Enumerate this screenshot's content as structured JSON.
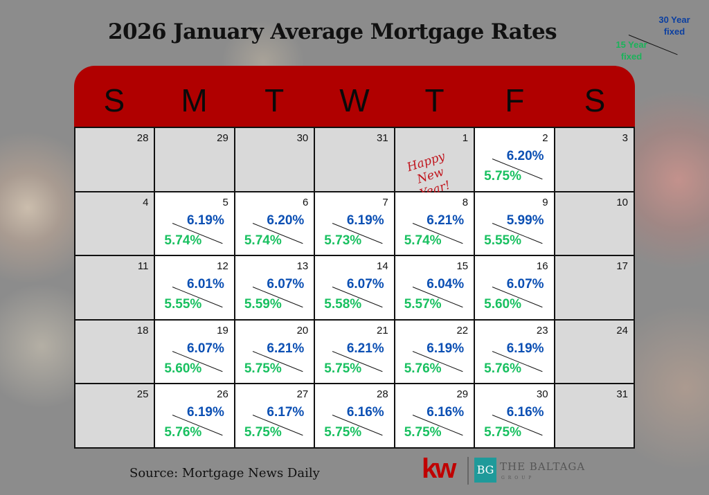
{
  "title": "2026 January Average Mortgage Rates",
  "legend": {
    "thirty": "30 Year fixed",
    "fifteen": "15 Year fixed"
  },
  "weekdays": [
    "S",
    "M",
    "T",
    "W",
    "T",
    "F",
    "S"
  ],
  "weeks": [
    [
      {
        "day": "28",
        "shaded": true
      },
      {
        "day": "29",
        "shaded": true
      },
      {
        "day": "30",
        "shaded": true
      },
      {
        "day": "31",
        "shaded": true
      },
      {
        "day": "1",
        "shaded": true,
        "note": "Happy New Year!"
      },
      {
        "day": "2",
        "r30": "6.20%",
        "r15": "5.75%"
      },
      {
        "day": "3",
        "shaded": true
      }
    ],
    [
      {
        "day": "4",
        "shaded": true
      },
      {
        "day": "5",
        "r30": "6.19%",
        "r15": "5.74%"
      },
      {
        "day": "6",
        "r30": "6.20%",
        "r15": "5.74%"
      },
      {
        "day": "7",
        "r30": "6.19%",
        "r15": "5.73%"
      },
      {
        "day": "8",
        "r30": "6.21%",
        "r15": "5.74%"
      },
      {
        "day": "9",
        "r30": "5.99%",
        "r15": "5.55%"
      },
      {
        "day": "10",
        "shaded": true
      }
    ],
    [
      {
        "day": "11",
        "shaded": true
      },
      {
        "day": "12",
        "r30": "6.01%",
        "r15": "5.55%"
      },
      {
        "day": "13",
        "r30": "6.07%",
        "r15": "5.59%"
      },
      {
        "day": "14",
        "r30": "6.07%",
        "r15": "5.58%"
      },
      {
        "day": "15",
        "r30": "6.04%",
        "r15": "5.57%"
      },
      {
        "day": "16",
        "r30": "6.07%",
        "r15": "5.60%"
      },
      {
        "day": "17",
        "shaded": true
      }
    ],
    [
      {
        "day": "18",
        "shaded": true
      },
      {
        "day": "19",
        "r30": "6.07%",
        "r15": "5.60%"
      },
      {
        "day": "20",
        "r30": "6.21%",
        "r15": "5.75%"
      },
      {
        "day": "21",
        "r30": "6.21%",
        "r15": "5.75%"
      },
      {
        "day": "22",
        "r30": "6.19%",
        "r15": "5.76%"
      },
      {
        "day": "23",
        "r30": "6.19%",
        "r15": "5.76%"
      },
      {
        "day": "24",
        "shaded": true
      }
    ],
    [
      {
        "day": "25",
        "shaded": true
      },
      {
        "day": "26",
        "r30": "6.19%",
        "r15": "5.76%"
      },
      {
        "day": "27",
        "r30": "6.17%",
        "r15": "5.75%"
      },
      {
        "day": "28",
        "r30": "6.16%",
        "r15": "5.75%"
      },
      {
        "day": "29",
        "r30": "6.16%",
        "r15": "5.75%"
      },
      {
        "day": "30",
        "r30": "6.16%",
        "r15": "5.75%"
      },
      {
        "day": "31",
        "shaded": true
      }
    ]
  ],
  "footer": {
    "source": "Source: Mortgage News Daily",
    "kw": "kw",
    "bg": "BG",
    "brand": "THE BALTAGA",
    "brand_sub": "GROUP"
  },
  "colors": {
    "header": "#b00000",
    "thirty": "#0b4fb3",
    "fifteen": "#19c060"
  }
}
